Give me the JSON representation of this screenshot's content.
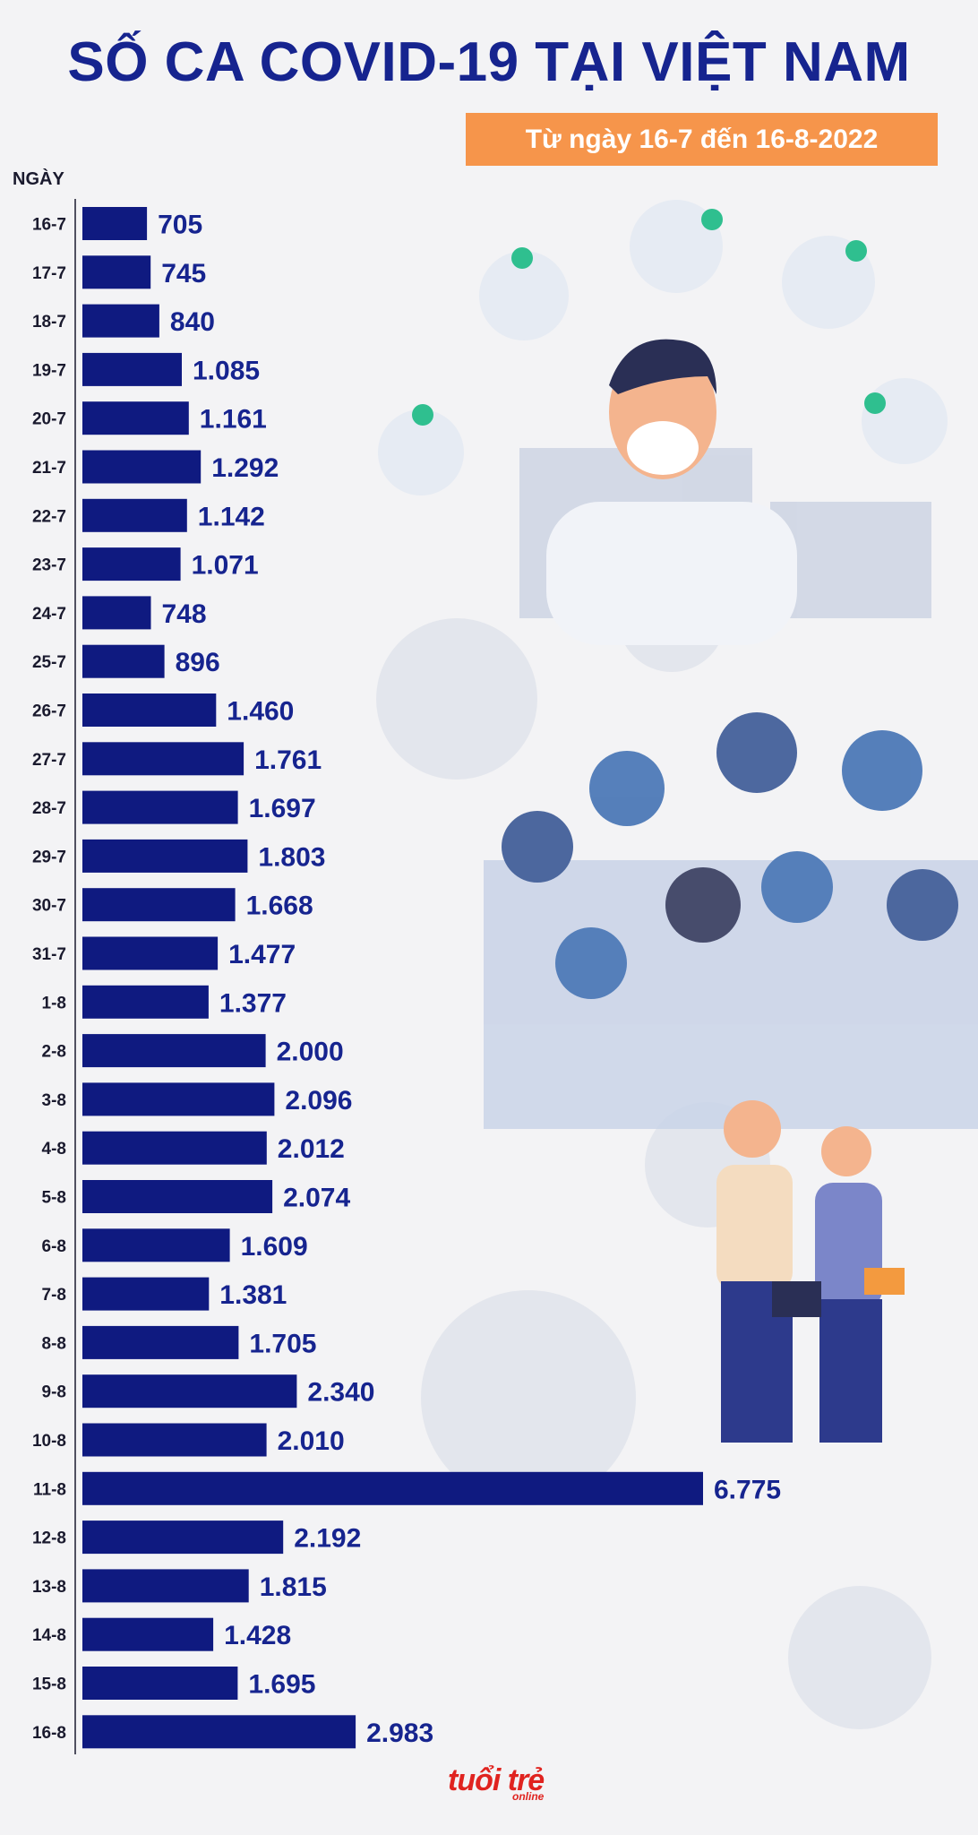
{
  "header": {
    "title": "SỐ CA COVID-19 TẠI VIỆT NAM",
    "subtitle": "Từ ngày 16-7 đến 16-8-2022"
  },
  "logo": {
    "main": "tuổi trẻ",
    "sub": "online"
  },
  "colors": {
    "title": "#16248f",
    "bar": "#0f1a80",
    "subtitle_bg": "#f6954b",
    "background": "#f3f3f5",
    "logo": "#e0231f"
  },
  "chart_data": {
    "type": "bar",
    "orientation": "horizontal",
    "title": "SỐ CA COVID-19 TẠI VIỆT NAM",
    "ylabel": "NGÀY",
    "xlabel": "",
    "categories": [
      "16-7",
      "17-7",
      "18-7",
      "19-7",
      "20-7",
      "21-7",
      "22-7",
      "23-7",
      "24-7",
      "25-7",
      "26-7",
      "27-7",
      "28-7",
      "29-7",
      "30-7",
      "31-7",
      "1-8",
      "2-8",
      "3-8",
      "4-8",
      "5-8",
      "6-8",
      "7-8",
      "8-8",
      "9-8",
      "10-8",
      "11-8",
      "12-8",
      "13-8",
      "14-8",
      "15-8",
      "16-8"
    ],
    "values": [
      705,
      745,
      840,
      1085,
      1161,
      1292,
      1142,
      1071,
      748,
      896,
      1460,
      1761,
      1697,
      1803,
      1668,
      1477,
      1377,
      2000,
      2096,
      2012,
      2074,
      1609,
      1381,
      1705,
      2340,
      2010,
      6775,
      2192,
      1815,
      1428,
      1695,
      2983
    ],
    "value_labels": [
      "705",
      "745",
      "840",
      "1.085",
      "1.161",
      "1.292",
      "1.142",
      "1.071",
      "748",
      "896",
      "1.460",
      "1.761",
      "1.697",
      "1.803",
      "1.668",
      "1.477",
      "1.377",
      "2.000",
      "2.096",
      "2.012",
      "2.074",
      "1.609",
      "1.381",
      "1.705",
      "2.340",
      "2.010",
      "6.775",
      "2.192",
      "1.815",
      "1.428",
      "1.695",
      "2.983"
    ],
    "xlim": [
      0,
      6775
    ],
    "grid": false,
    "legend": "none"
  }
}
